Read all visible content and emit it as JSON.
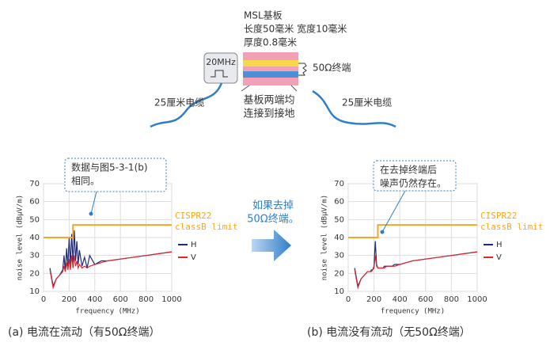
{
  "diagram": {
    "board_title": "MSL基板",
    "board_size": "长度50毫米 宽度10毫米",
    "board_thickness": "厚度0.8毫米",
    "source": "20MHz",
    "termination": "50Ω终端",
    "cable_left": "25厘米电缆",
    "cable_right": "25厘米电缆",
    "ground": [
      "基板两端均",
      "连接到接地"
    ],
    "middle_note": [
      "如果去掉",
      "50Ω终端。"
    ]
  },
  "chart_data": [
    {
      "type": "line",
      "caption": "(a) 电流在流动（有50Ω终端）",
      "annotation": [
        "数据与图5-3-1(b)",
        "相同。"
      ],
      "xlabel": "frequency (MHz)",
      "ylabel": "noise level (dBμV/m)",
      "xlim": [
        0,
        1000
      ],
      "ylim": [
        10,
        70
      ],
      "xticks": [
        0,
        200,
        400,
        600,
        800,
        1000
      ],
      "yticks": [
        10,
        20,
        30,
        40,
        50,
        60,
        70
      ],
      "series": [
        {
          "name": "H",
          "color": "#1f2a7a",
          "x": [
            50,
            75,
            100,
            125,
            150,
            160,
            170,
            180,
            190,
            200,
            210,
            220,
            230,
            240,
            250,
            260,
            270,
            280,
            300,
            320,
            340,
            360,
            400,
            450,
            500,
            600,
            700,
            800,
            900,
            1000
          ],
          "values": [
            23,
            13,
            17,
            19,
            22,
            30,
            21,
            34,
            24,
            40,
            25,
            42,
            26,
            44,
            27,
            38,
            25,
            33,
            24,
            29,
            23,
            30,
            25,
            27,
            27,
            28,
            29,
            30,
            31,
            32
          ]
        },
        {
          "name": "V",
          "color": "#e0282e",
          "x": [
            50,
            75,
            100,
            125,
            150,
            160,
            170,
            180,
            190,
            200,
            210,
            220,
            230,
            240,
            250,
            260,
            270,
            280,
            300,
            320,
            340,
            360,
            400,
            450,
            500,
            600,
            700,
            800,
            900,
            1000
          ],
          "values": [
            22,
            12,
            17,
            19,
            21,
            24,
            21,
            26,
            22,
            28,
            22,
            30,
            23,
            30,
            24,
            27,
            23,
            25,
            23,
            24,
            23,
            24,
            25,
            26,
            27,
            28,
            29,
            30,
            31,
            32
          ]
        },
        {
          "name": "CISPR22 classB limit",
          "color": "#f5a623",
          "x": [
            0,
            230,
            230,
            1000
          ],
          "values": [
            40,
            40,
            47,
            47
          ]
        }
      ]
    },
    {
      "type": "line",
      "caption": "(b) 电流没有流动（无50Ω终端）",
      "annotation": [
        "在去掉终端后",
        "噪声仍然存在。"
      ],
      "xlabel": "frequency (MHz)",
      "ylabel": "noise level (dBμV/m)",
      "xlim": [
        0,
        1000
      ],
      "ylim": [
        10,
        70
      ],
      "xticks": [
        0,
        200,
        400,
        600,
        800,
        1000
      ],
      "yticks": [
        10,
        20,
        30,
        40,
        50,
        60,
        70
      ],
      "series": [
        {
          "name": "H",
          "color": "#1f2a7a",
          "x": [
            50,
            75,
            100,
            125,
            150,
            160,
            170,
            180,
            190,
            200,
            210,
            220,
            230,
            240,
            250,
            260,
            270,
            280,
            300,
            320,
            340,
            360,
            400,
            450,
            500,
            600,
            700,
            800,
            900,
            1000
          ],
          "values": [
            23,
            13,
            17,
            19,
            21,
            21,
            21,
            22,
            22,
            24,
            38,
            25,
            23,
            23,
            23,
            23,
            23,
            24,
            24,
            24,
            24,
            25,
            25,
            26,
            27,
            28,
            29,
            30,
            31,
            32
          ]
        },
        {
          "name": "V",
          "color": "#e0282e",
          "x": [
            50,
            75,
            100,
            125,
            150,
            160,
            170,
            180,
            190,
            200,
            210,
            220,
            230,
            240,
            250,
            260,
            270,
            280,
            300,
            320,
            340,
            360,
            400,
            450,
            500,
            600,
            700,
            800,
            900,
            1000
          ],
          "values": [
            22,
            12,
            17,
            19,
            21,
            21,
            21,
            21,
            22,
            23,
            30,
            24,
            23,
            23,
            23,
            23,
            23,
            23,
            24,
            24,
            24,
            24,
            25,
            26,
            27,
            28,
            29,
            30,
            31,
            32
          ]
        },
        {
          "name": "CISPR22 classB limit",
          "color": "#f5a623",
          "x": [
            0,
            230,
            230,
            1000
          ],
          "values": [
            40,
            40,
            47,
            47
          ]
        }
      ]
    }
  ]
}
